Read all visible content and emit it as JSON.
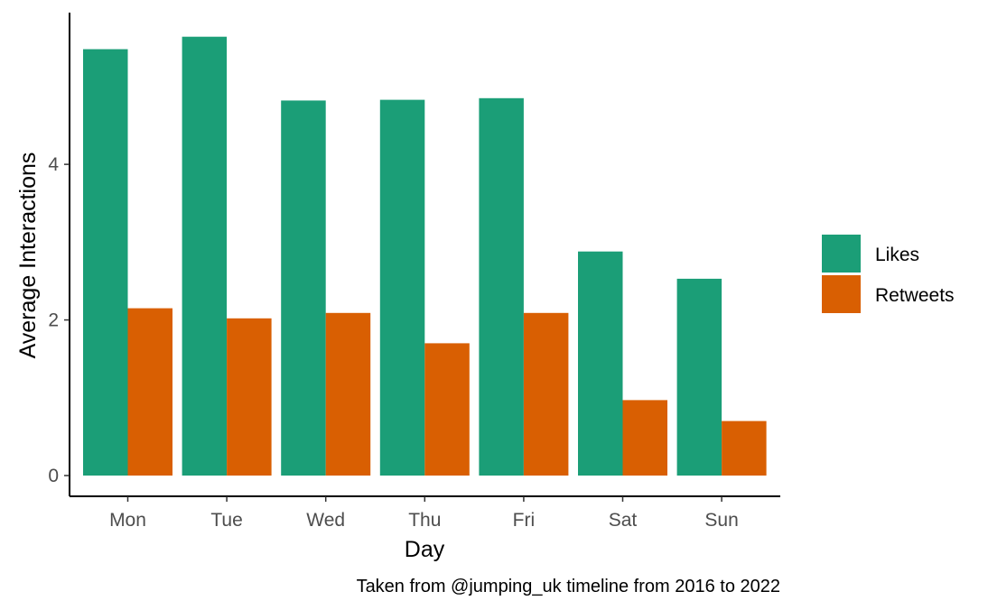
{
  "chart_data": {
    "type": "bar",
    "categories": [
      "Mon",
      "Tue",
      "Wed",
      "Thu",
      "Fri",
      "Sat",
      "Sun"
    ],
    "series": [
      {
        "name": "Likes",
        "color": "#1b9e77",
        "values": [
          5.48,
          5.64,
          4.82,
          4.83,
          4.85,
          2.88,
          2.53
        ]
      },
      {
        "name": "Retweets",
        "color": "#d95f02",
        "values": [
          2.15,
          2.02,
          2.09,
          1.7,
          2.09,
          0.97,
          0.7
        ]
      }
    ],
    "xlabel": "Day",
    "ylabel": "Average Interactions",
    "ylim": [
      0,
      5.95
    ],
    "yticks": [
      0,
      2,
      4
    ],
    "caption": "Taken from @jumping_uk timeline from 2016 to 2022",
    "grid": false,
    "legend_position": "right"
  }
}
